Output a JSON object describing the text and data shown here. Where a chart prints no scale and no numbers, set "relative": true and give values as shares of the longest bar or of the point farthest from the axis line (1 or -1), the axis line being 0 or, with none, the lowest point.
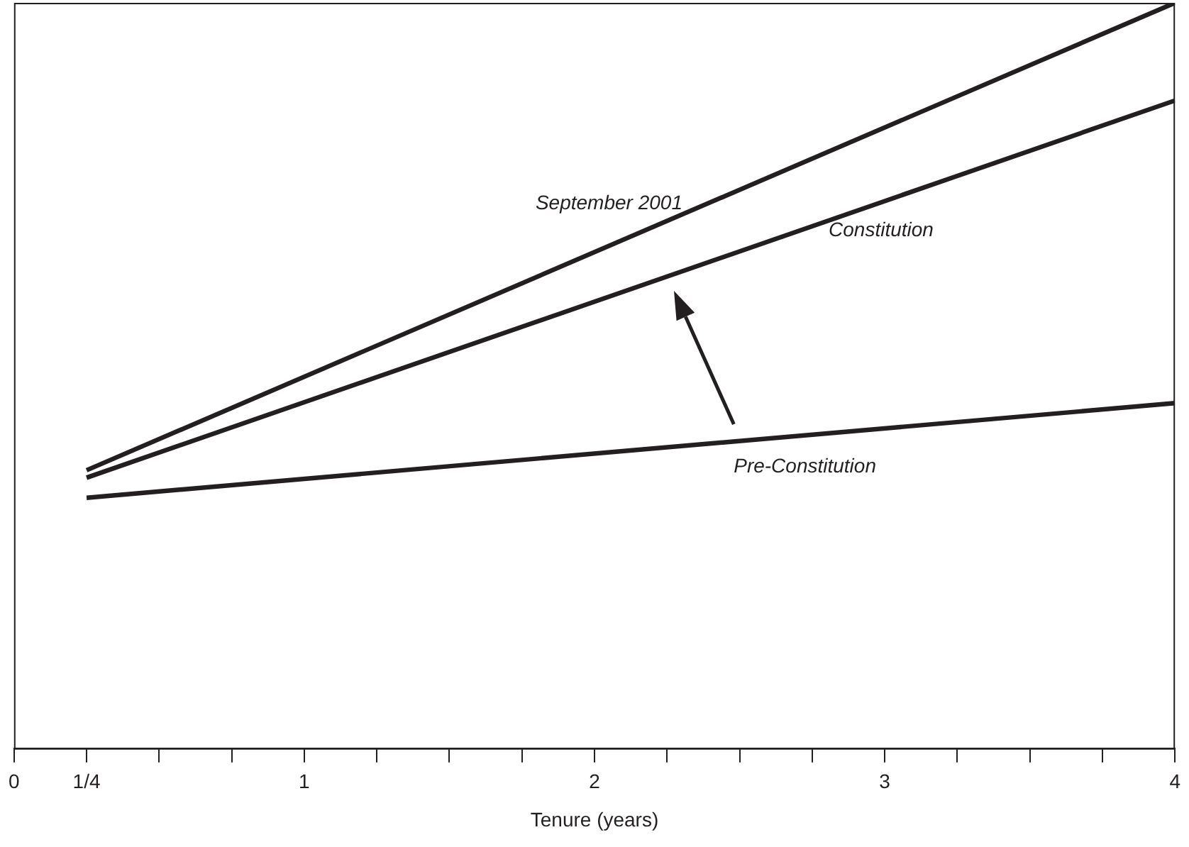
{
  "chart_data": {
    "type": "line",
    "relative": true,
    "xlabel": "Tenure (years)",
    "x": [
      0.25,
      4
    ],
    "xlim": [
      0,
      4
    ],
    "xticks": [
      0,
      {
        "value": 0.25,
        "label": "1/4"
      },
      {
        "value": 0.5,
        "label": null
      },
      {
        "value": 0.75,
        "label": null
      },
      1,
      {
        "value": 1.25,
        "label": null
      },
      {
        "value": 1.5,
        "label": null
      },
      {
        "value": 1.75,
        "label": null
      },
      2,
      {
        "value": 2.25,
        "label": null
      },
      {
        "value": 2.5,
        "label": null
      },
      {
        "value": 2.75,
        "label": null
      },
      3,
      {
        "value": 3.25,
        "label": null
      },
      {
        "value": 3.5,
        "label": null
      },
      {
        "value": 3.75,
        "label": null
      },
      4
    ],
    "series": [
      {
        "name": "September 2001",
        "color": "#231f20",
        "values": [
          0.373,
          1.0
        ]
      },
      {
        "name": "Constitution",
        "color": "#231f20",
        "values": [
          0.363,
          0.869
        ]
      },
      {
        "name": "Pre-Constitution",
        "color": "#231f20",
        "values": [
          0.336,
          0.463
        ]
      }
    ],
    "legend": false,
    "marker": "none",
    "line_style": "solid"
  }
}
